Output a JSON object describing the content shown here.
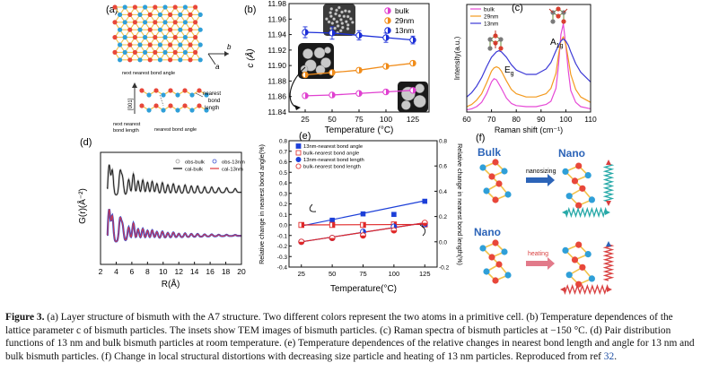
{
  "panel_a": {
    "label": "(a)",
    "axis_b": "b",
    "axis_a": "a",
    "text_next_nearest_top": "next nearest bond angle",
    "axis_001": "[001]",
    "text_nearest_bond_angle": "nearest bond angle",
    "text_next_nearest_bond": "next nearest",
    "text_bond_length": "bond length",
    "text_nearest": "nearest",
    "text_bond": "bond",
    "text_length": "length",
    "colors": {
      "red": "#e8473a",
      "blue": "#2f9fd8",
      "yellow": "#f2c24a"
    }
  },
  "chart_b": {
    "label": "(b)",
    "type": "scatter",
    "title": "",
    "xlabel": "Temperature (°C)",
    "ylabel": "c (Å)",
    "xlim": [
      10,
      140
    ],
    "ylim": [
      11.84,
      11.98
    ],
    "xticks": [
      25,
      50,
      75,
      100,
      125
    ],
    "yticks": [
      11.84,
      11.86,
      11.88,
      11.9,
      11.92,
      11.94,
      11.96,
      11.98
    ],
    "legend": [
      "bulk",
      "29nm",
      "13nm"
    ],
    "series": [
      {
        "name": "bulk",
        "color": "#e040d0",
        "x": [
          25,
          50,
          75,
          100,
          125
        ],
        "y": [
          11.861,
          11.862,
          11.864,
          11.866,
          11.868
        ],
        "err": [
          0.002,
          0.002,
          0.002,
          0.002,
          0.002
        ]
      },
      {
        "name": "29nm",
        "color": "#f08c1a",
        "x": [
          25,
          50,
          75,
          100,
          125
        ],
        "y": [
          11.888,
          11.891,
          11.894,
          11.899,
          11.903
        ],
        "err": [
          0.003,
          0.003,
          0.003,
          0.003,
          0.003
        ]
      },
      {
        "name": "13nm",
        "color": "#1c2fd8",
        "x": [
          25,
          50,
          75,
          100,
          125
        ],
        "y": [
          11.943,
          11.942,
          11.939,
          11.936,
          11.933
        ],
        "err": [
          0.007,
          0.008,
          0.006,
          0.006,
          0.005
        ]
      }
    ]
  },
  "chart_c": {
    "label": "(c)",
    "type": "line",
    "xlabel": "Raman shift (cm⁻¹)",
    "ylabel": "Intensity(a.u.)",
    "xlim": [
      60,
      110
    ],
    "xticks": [
      60,
      70,
      80,
      90,
      100,
      110
    ],
    "legend": [
      "bulk",
      "29nm",
      "13nm"
    ],
    "peak_eg": "E",
    "peak_eg_sub": "g",
    "peak_a1g": "A",
    "peak_a1g_sub": "1g",
    "series": [
      {
        "name": "bulk",
        "color": "#e64ad6",
        "x": [
          60,
          62,
          64,
          66,
          68,
          70,
          71,
          72,
          74,
          76,
          78,
          80,
          84,
          88,
          92,
          94,
          96,
          97,
          98,
          99,
          100,
          101,
          102,
          104,
          106,
          110
        ],
        "y": [
          0.02,
          0.03,
          0.05,
          0.09,
          0.17,
          0.28,
          0.31,
          0.3,
          0.22,
          0.13,
          0.08,
          0.06,
          0.05,
          0.05,
          0.07,
          0.1,
          0.22,
          0.42,
          0.72,
          0.82,
          0.62,
          0.38,
          0.2,
          0.09,
          0.05,
          0.03
        ]
      },
      {
        "name": "29nm",
        "color": "#f39a1e",
        "x": [
          60,
          62,
          64,
          66,
          68,
          70,
          71,
          72,
          73,
          74,
          76,
          78,
          80,
          84,
          88,
          92,
          94,
          96,
          97,
          98,
          99,
          100,
          101,
          102,
          104,
          106,
          110
        ],
        "y": [
          0.05,
          0.07,
          0.11,
          0.17,
          0.27,
          0.38,
          0.41,
          0.42,
          0.41,
          0.38,
          0.29,
          0.21,
          0.17,
          0.14,
          0.14,
          0.17,
          0.22,
          0.36,
          0.52,
          0.66,
          0.7,
          0.63,
          0.49,
          0.35,
          0.21,
          0.14,
          0.09
        ]
      },
      {
        "name": "13nm",
        "color": "#3d3ad6",
        "x": [
          60,
          62,
          64,
          66,
          68,
          70,
          72,
          73,
          74,
          76,
          78,
          80,
          84,
          88,
          92,
          94,
          96,
          98,
          99,
          100,
          101,
          102,
          104,
          106,
          110
        ],
        "y": [
          0.14,
          0.18,
          0.24,
          0.32,
          0.42,
          0.51,
          0.56,
          0.57,
          0.56,
          0.51,
          0.44,
          0.39,
          0.35,
          0.35,
          0.4,
          0.46,
          0.57,
          0.66,
          0.68,
          0.66,
          0.62,
          0.56,
          0.45,
          0.37,
          0.28
        ]
      }
    ]
  },
  "chart_d": {
    "label": "(d)",
    "type": "line",
    "xlabel": "R(Å)",
    "ylabel": "G(r)(Å⁻²)",
    "xlim": [
      2,
      20
    ],
    "xticks": [
      2,
      4,
      6,
      8,
      10,
      12,
      14,
      16,
      18,
      20
    ],
    "legend": [
      "obs-bulk",
      "cal-bulk",
      "obs-13nm",
      "cal-13nm"
    ],
    "series": [
      {
        "name": "obs-bulk",
        "color": "#9a9a9a"
      },
      {
        "name": "cal-bulk",
        "color": "#111111"
      },
      {
        "name": "obs-13nm",
        "color": "#3a4fd0"
      },
      {
        "name": "cal-13nm",
        "color": "#e0353b"
      }
    ]
  },
  "chart_e": {
    "label": "(e)",
    "type": "scatter",
    "xlabel": "Temperature(°C)",
    "ylabel": "Relative change in nearest bond angle(%)",
    "ylabel_right": "Relative change in nearest bond length(%)",
    "xlim": [
      15,
      135
    ],
    "ylim_left": [
      -0.4,
      0.8
    ],
    "ylim_right": [
      -0.2,
      0.8
    ],
    "xticks": [
      25,
      50,
      75,
      100,
      125
    ],
    "yticks_left": [
      -0.4,
      -0.3,
      -0.2,
      -0.1,
      0.0,
      0.1,
      0.2,
      0.3,
      0.4,
      0.5,
      0.6,
      0.7,
      0.8
    ],
    "yticks_right": [
      -0.2,
      0.0,
      0.2,
      0.4,
      0.6,
      0.8
    ],
    "legend": [
      "13nm-nearest bond angle",
      "bulk-nearest bond angle",
      "13nm-nearest bond length",
      "bulk-nearest bond length"
    ],
    "series": [
      {
        "name": "13nm-nearest bond angle",
        "axis": "left",
        "marker": "square",
        "color": "#1c3fd8",
        "x": [
          25,
          50,
          75,
          100,
          125
        ],
        "y": [
          0.0,
          0.045,
          0.105,
          0.1,
          0.225
        ],
        "fit": [
          -0.01,
          0.23
        ]
      },
      {
        "name": "bulk-nearest bond angle",
        "axis": "left",
        "marker": "square-half",
        "color": "#e02828",
        "x": [
          25,
          50,
          75,
          100,
          125
        ],
        "y": [
          0.0,
          0.0,
          0.0,
          0.005,
          0.005
        ],
        "fit": [
          0.0,
          0.005
        ]
      },
      {
        "name": "13nm-nearest bond length",
        "axis": "right",
        "marker": "circle",
        "color": "#1c3fd8",
        "x": [
          25,
          50,
          75,
          100,
          125
        ],
        "y": [
          0.0,
          0.03,
          0.08,
          0.12,
          0.14
        ],
        "fit": [
          0.0,
          0.15
        ]
      },
      {
        "name": "bulk-nearest bond length",
        "axis": "right",
        "marker": "circle-half",
        "color": "#e02828",
        "x": [
          25,
          50,
          75,
          100,
          125
        ],
        "y": [
          0.0,
          0.03,
          0.05,
          0.09,
          0.15
        ],
        "fit": [
          0.0,
          0.15
        ]
      }
    ]
  },
  "panel_f": {
    "label": "(f)",
    "bulk": "Bulk",
    "nano_top": "Nano",
    "nanosizing": "nanosizing",
    "nano_bottom": "Nano",
    "heating": "heating",
    "colors": {
      "red": "#e8473a",
      "blue": "#2f9fd8",
      "yellow": "#f2c24a",
      "arrow": "#2c64b8",
      "spring_teal": "#27a9a8",
      "spring_red": "#d94040"
    }
  },
  "caption": {
    "label": "Figure 3.",
    "text": " (a) Layer structure of bismuth with the A7 structure. Two different colors represent the two atoms in a primitive cell. (b) Temperature dependences of the lattice parameter c of bismuth particles. The insets show TEM images of bismuth particles. (c) Raman spectra of bismuth particles at −150 °C. (d) Pair distribution functions of 13 nm and bulk bismuth particles at room temperature. (e) Temperature dependences of the relative changes in nearest bond length and angle for 13 nm and bulk bismuth particles. (f) Change in local structural distortions with decreasing size particle and heating of 13 nm particles. Reproduced from ref ",
    "ref": "32",
    "end": "."
  }
}
